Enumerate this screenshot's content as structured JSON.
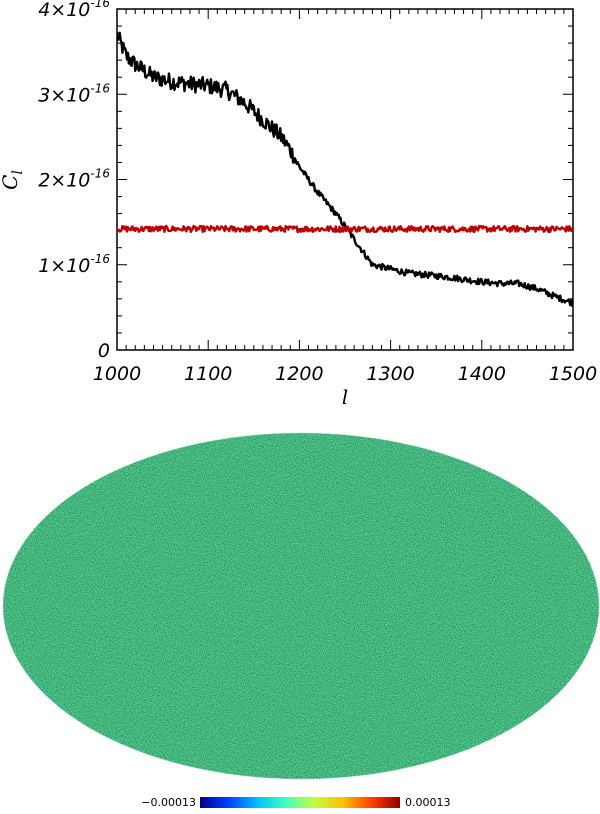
{
  "chart_data": [
    {
      "type": "line",
      "xlabel": "l",
      "ylabel": "C",
      "ylabel_subscript": "l",
      "xlim": [
        1000,
        1500
      ],
      "ylim": [
        0,
        4e-16
      ],
      "xticks": [
        "1000",
        "1100",
        "1200",
        "1300",
        "1400",
        "1500"
      ],
      "yticks": [
        {
          "value": 0,
          "mantissa": "0",
          "exponent": ""
        },
        {
          "value": 1e-16,
          "mantissa": "1×10",
          "exponent": "-16"
        },
        {
          "value": 2e-16,
          "mantissa": "2×10",
          "exponent": "-16"
        },
        {
          "value": 3e-16,
          "mantissa": "3×10",
          "exponent": "-16"
        },
        {
          "value": 4e-16,
          "mantissa": "4×10",
          "exponent": "-16"
        }
      ],
      "grid": false,
      "series": [
        {
          "color": "#000000",
          "x": [
            1000,
            1010,
            1020,
            1040,
            1060,
            1080,
            1100,
            1120,
            1140,
            1160,
            1180,
            1190,
            1200,
            1210,
            1220,
            1240,
            1260,
            1280,
            1300,
            1320,
            1340,
            1360,
            1380,
            1400,
            1420,
            1440,
            1460,
            1480,
            1500
          ],
          "values": [
            3.7e-16,
            3.45e-16,
            3.35e-16,
            3.2e-16,
            3.15e-16,
            3.12e-16,
            3.1e-16,
            3.05e-16,
            2.9e-16,
            2.7e-16,
            2.5e-16,
            2.35e-16,
            2.15e-16,
            2e-16,
            1.85e-16,
            1.6e-16,
            1.3e-16,
            1e-16,
            9.5e-17,
            9e-17,
            8.8e-17,
            8.6e-17,
            8.3e-17,
            8e-17,
            7.8e-17,
            7.8e-17,
            7.2e-17,
            6.3e-17,
            5.5e-17
          ]
        },
        {
          "color": "#c00000",
          "x": [
            1000,
            1500
          ],
          "values": [
            1.42e-16,
            1.42e-16
          ]
        }
      ]
    },
    {
      "type": "heatmap",
      "projection": "mollweide",
      "colorbar": {
        "min_label": "−0.00013",
        "max_label": "0.00013",
        "colormap": [
          "#00008f",
          "#0040ff",
          "#00c0ff",
          "#40ffbf",
          "#c0ff40",
          "#ffbf00",
          "#ff4000",
          "#8f0000"
        ]
      }
    }
  ]
}
